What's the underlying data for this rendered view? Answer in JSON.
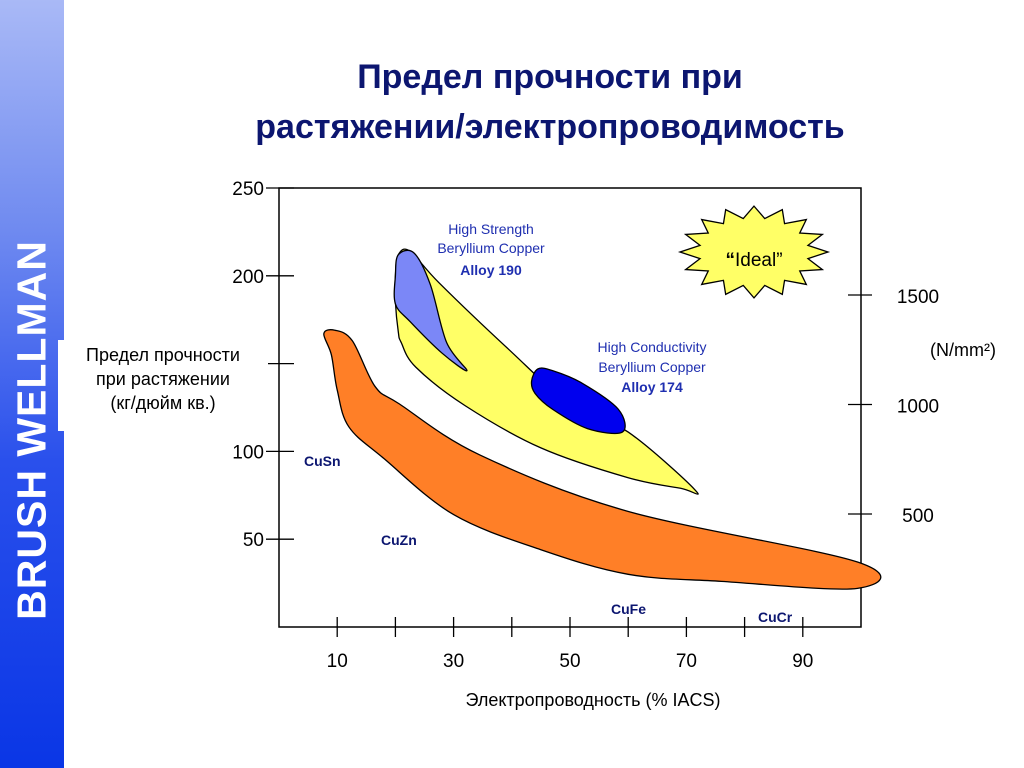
{
  "brand": "BRUSH WELLMAN",
  "title_line1": "Предел прочности при",
  "title_line2": "растяжении/электропроводимость",
  "ylabel_lines": [
    "Предел прочности",
    "при растяжении",
    "(кг/дюйм кв.)"
  ],
  "colors": {
    "sidebar": "#2a50ec",
    "title": "#0c1670",
    "cu_alloys": "#ff7f27",
    "beryllium_band": "#ffff66",
    "alloy190": "#7b87f7",
    "alloy174": "#0000ee",
    "ideal_star": "#ffff66",
    "annotation": "#1f2fb0"
  },
  "chart_data": {
    "type": "region",
    "xlabel": "Электропроводность (% IACS)",
    "x_ticks": [
      10,
      30,
      50,
      70,
      90
    ],
    "y_ticks_left": [
      50,
      100,
      200,
      250
    ],
    "ylim_left": [
      0,
      250
    ],
    "xlim": [
      0,
      100
    ],
    "y_right_unit": "(N/mm²)",
    "y_right_ticks": [
      500,
      1000,
      1500
    ],
    "regions": [
      {
        "name": "cu_alloys",
        "labels": [
          "CuSn",
          "CuZn",
          "CuFe",
          "CuCr"
        ],
        "outline": [
          [
            7.7,
            167
          ],
          [
            9.6,
            169
          ],
          [
            12.6,
            163
          ],
          [
            16.5,
            137
          ],
          [
            20.7,
            127
          ],
          [
            34.5,
            98
          ],
          [
            59.8,
            66
          ],
          [
            99.4,
            37
          ],
          [
            99.4,
            22
          ],
          [
            76,
            26
          ],
          [
            60,
            30
          ],
          [
            45,
            44
          ],
          [
            30,
            64
          ],
          [
            18,
            96
          ],
          [
            12,
            114
          ],
          [
            10,
            135
          ],
          [
            9,
            155
          ]
        ]
      },
      {
        "name": "high_strength_band",
        "outline": [
          [
            20.5,
            212
          ],
          [
            22.5,
            214
          ],
          [
            27.5,
            196
          ],
          [
            39.5,
            158
          ],
          [
            50,
            127
          ],
          [
            60,
            111
          ],
          [
            71.5,
            78
          ],
          [
            69,
            79
          ],
          [
            60,
            85
          ],
          [
            45,
            102
          ],
          [
            32,
            126
          ],
          [
            23.5,
            148
          ],
          [
            21,
            162
          ],
          [
            20.5,
            168
          ],
          [
            20,
            185
          ],
          [
            20,
            200
          ]
        ]
      },
      {
        "name": "High Strength Beryllium Copper",
        "alloy": "Alloy 190",
        "outline": [
          [
            20.5,
            212
          ],
          [
            23.2,
            213
          ],
          [
            26,
            195
          ],
          [
            28.8,
            162
          ],
          [
            32.3,
            146
          ],
          [
            28,
            156
          ],
          [
            22.5,
            174
          ],
          [
            20,
            184
          ],
          [
            20,
            200
          ]
        ]
      },
      {
        "name": "High Conductivity Beryllium Copper",
        "alloy": "Alloy 174",
        "outline": [
          [
            44.5,
            147
          ],
          [
            47,
            146
          ],
          [
            52,
            139
          ],
          [
            58.3,
            124
          ],
          [
            59,
            111
          ],
          [
            53,
            113
          ],
          [
            47,
            124
          ],
          [
            44,
            133
          ],
          [
            43.4,
            140
          ]
        ]
      }
    ],
    "annotations": {
      "alloy190": {
        "line1": "High Strength",
        "line2": "Beryllium Copper",
        "line3": "Alloy 190"
      },
      "alloy174": {
        "line1": "High Conductivity",
        "line2": "Beryllium Copper",
        "line3": "Alloy 174"
      },
      "ideal": "Ideal"
    }
  }
}
